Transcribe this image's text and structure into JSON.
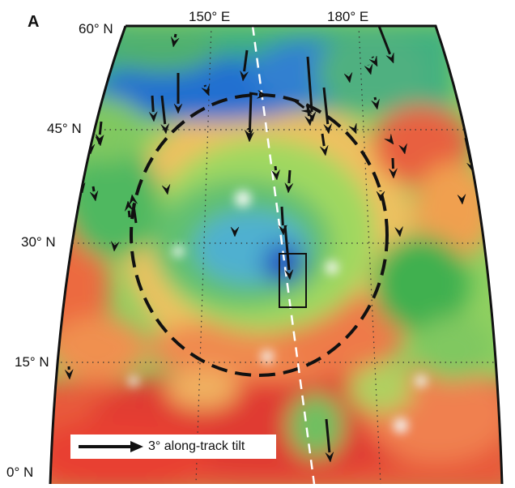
{
  "panel": {
    "letter": "A"
  },
  "labels": {
    "lon_150": "150° E",
    "lon_180": "180° E",
    "lat_60": "60° N",
    "lat_45": "45° N",
    "lat_30": "30° N",
    "lat_15": "15° N",
    "lat_0": "0° N"
  },
  "legend": {
    "text": "3° along-track tilt",
    "icon": "arrow-right-icon"
  },
  "colors": {
    "outline": "#111111",
    "track": "#ffffff",
    "gridline": "#333333",
    "high": "#e02020",
    "mid_high": "#f0a030",
    "mid": "#e8e040",
    "mid_low": "#40c040",
    "low": "#2080d0",
    "lowest": "#1050b0"
  }
}
